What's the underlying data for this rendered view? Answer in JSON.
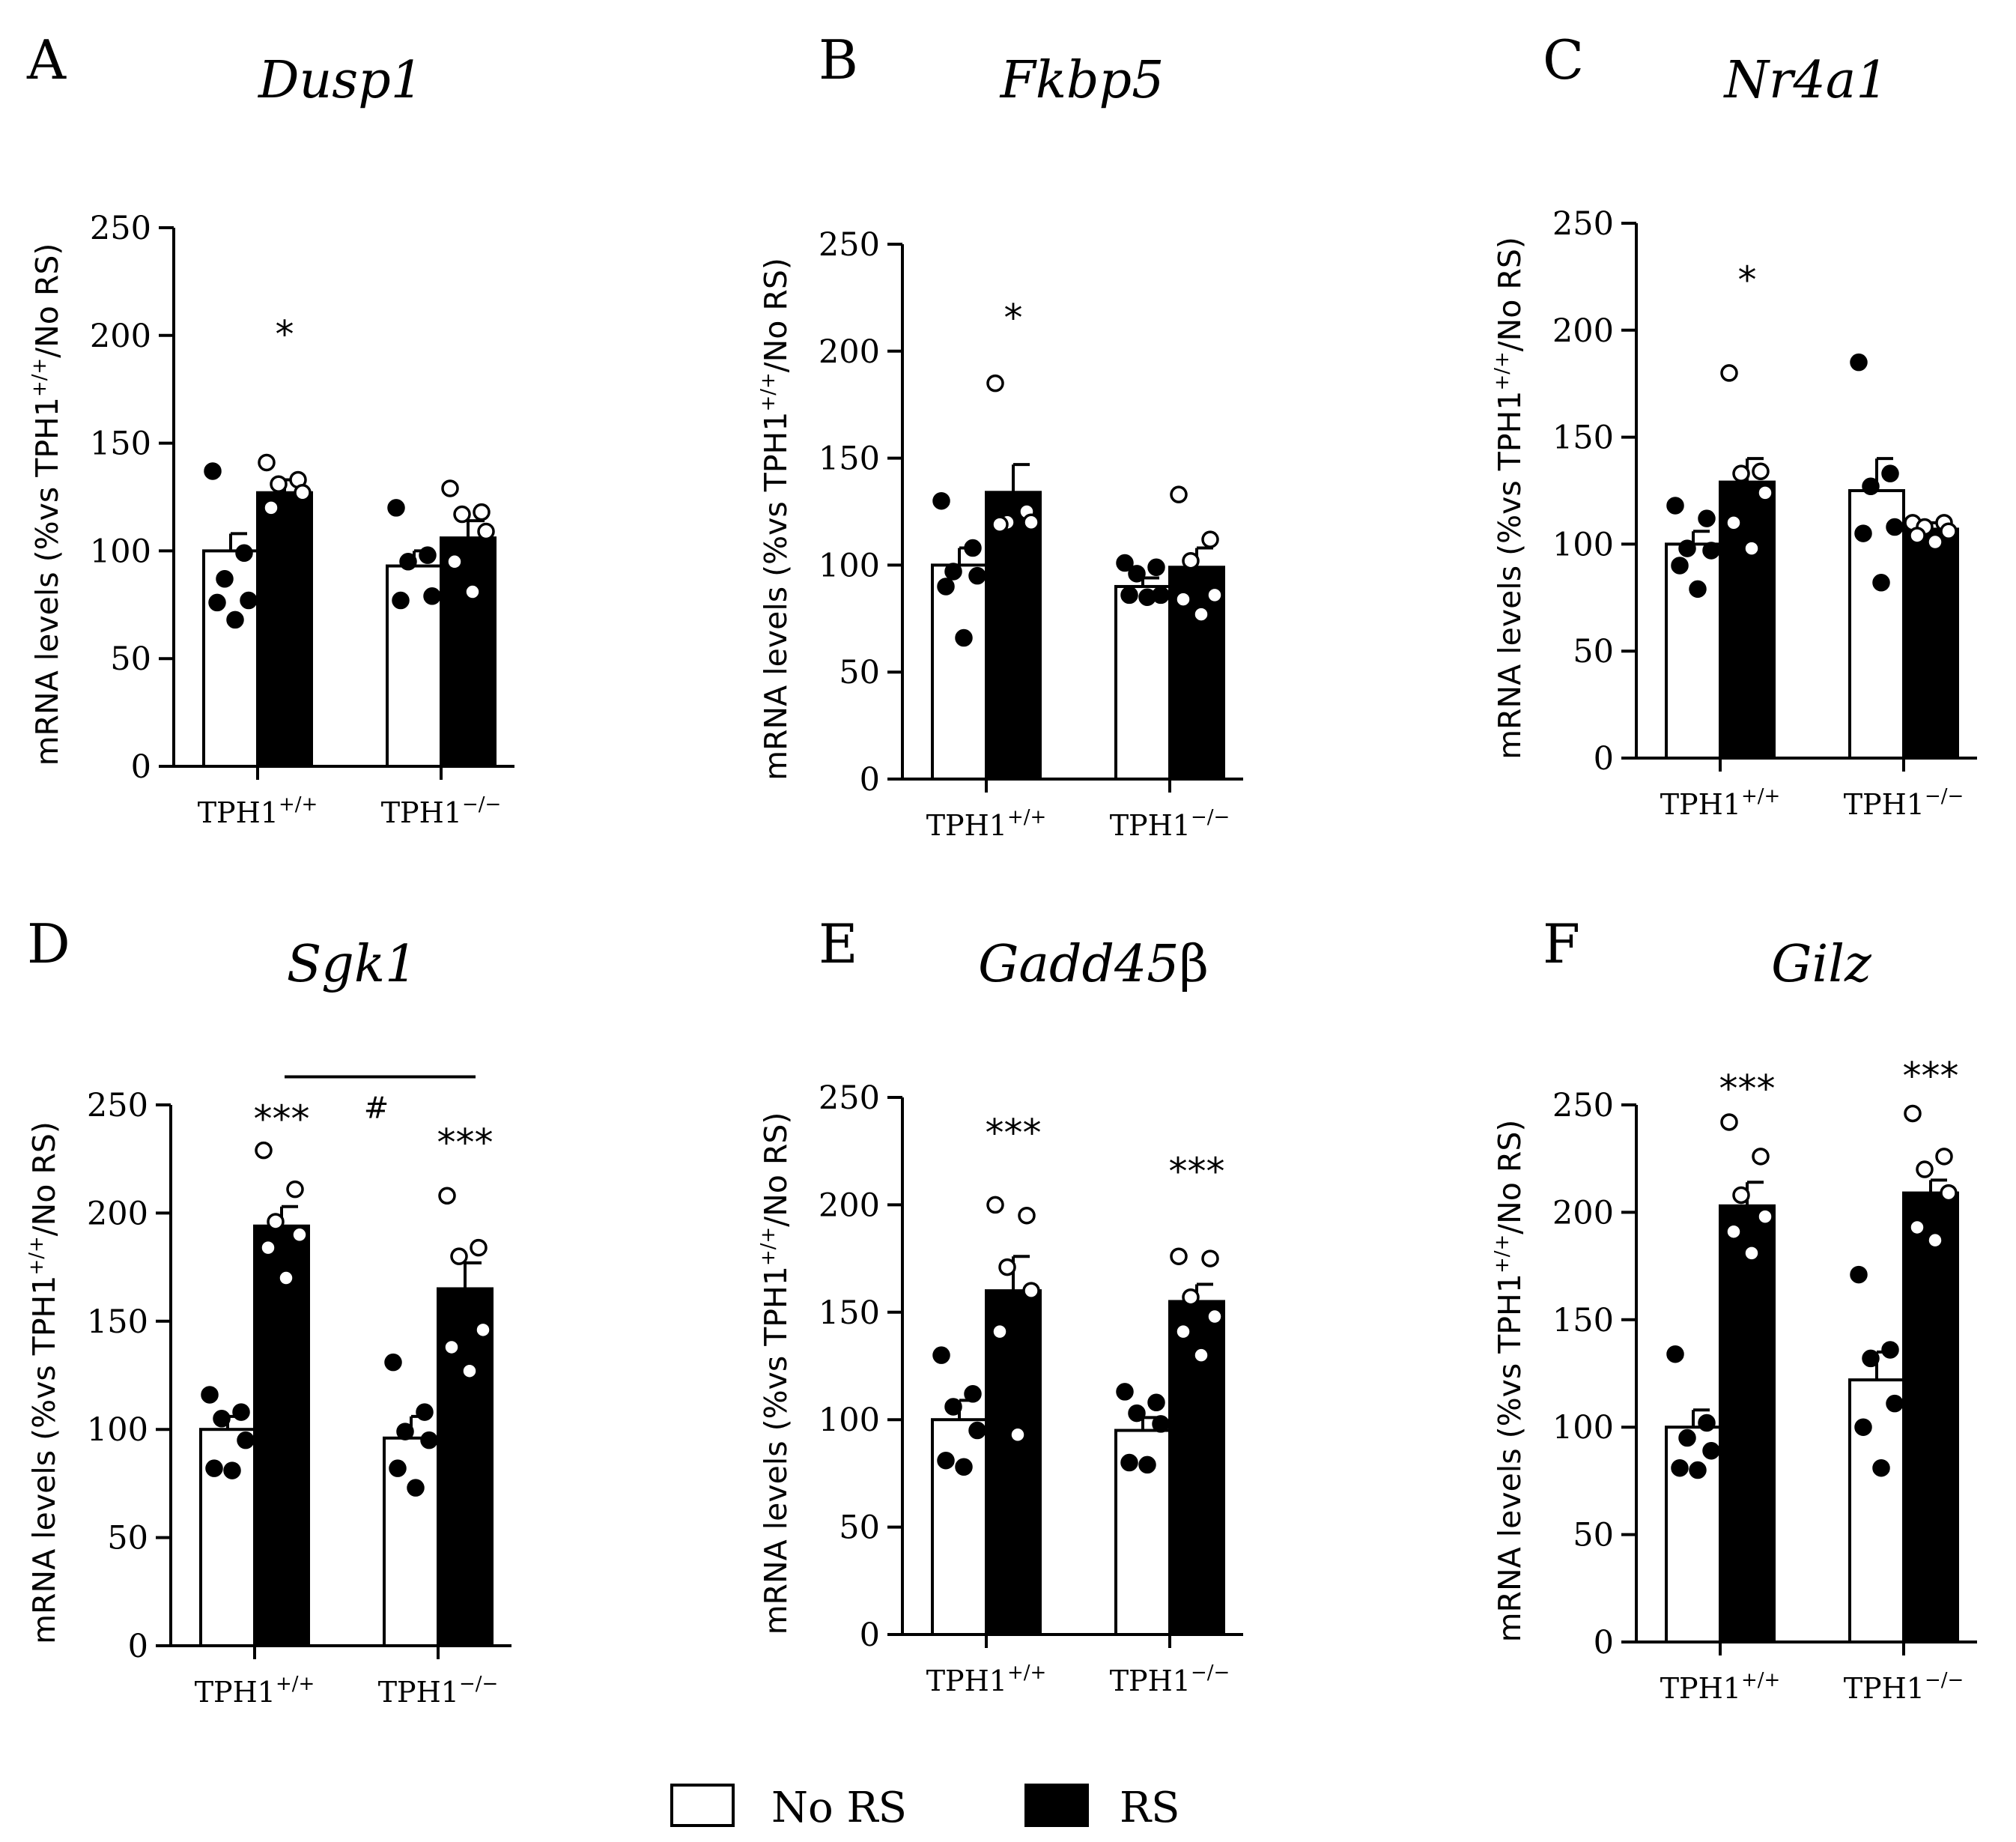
{
  "chart_data": [
    {
      "type": "bar",
      "panel": "A",
      "title": "Dusp1",
      "ylabel": "mRNA levels (%vs TPH1+/+/No RS)",
      "ylim": [
        0,
        250
      ],
      "yticks": [
        0,
        50,
        100,
        150,
        200,
        250
      ],
      "categories": [
        "TPH1+/+",
        "TPH1−/−"
      ],
      "series": [
        {
          "name": "No RS",
          "values": [
            100,
            93
          ],
          "sem": [
            8,
            7
          ],
          "points": [
            [
              137,
              99,
              87,
              77,
              76,
              68
            ],
            [
              120,
              98,
              95,
              79,
              77
            ]
          ]
        },
        {
          "name": "RS",
          "values": [
            127,
            106
          ],
          "sem": [
            6,
            8
          ],
          "points": [
            [
              141,
              133,
              131,
              127,
              120
            ],
            [
              129,
              118,
              117,
              109,
              95,
              81
            ]
          ]
        }
      ],
      "annotations": [
        {
          "text": "*",
          "group": 0,
          "series": 1,
          "y": 205
        }
      ]
    },
    {
      "type": "bar",
      "panel": "B",
      "title": "Fkbp5",
      "ylabel": "mRNA levels (%vs TPH1+/+/No RS)",
      "ylim": [
        0,
        250
      ],
      "yticks": [
        0,
        50,
        100,
        150,
        200,
        250
      ],
      "categories": [
        "TPH1+/+",
        "TPH1−/−"
      ],
      "series": [
        {
          "name": "No RS",
          "values": [
            100,
            90
          ],
          "sem": [
            8,
            4
          ],
          "points": [
            [
              130,
              108,
              97,
              95,
              90,
              66
            ],
            [
              101,
              99,
              96,
              86,
              86,
              85
            ]
          ]
        },
        {
          "name": "RS",
          "values": [
            134,
            99
          ],
          "sem": [
            13,
            9
          ],
          "points": [
            [
              185,
              125,
              120,
              120,
              119
            ],
            [
              133,
              112,
              102,
              86,
              84,
              77
            ]
          ]
        }
      ],
      "annotations": [
        {
          "text": "*",
          "group": 0,
          "series": 1,
          "y": 220
        }
      ]
    },
    {
      "type": "bar",
      "panel": "C",
      "title": "Nr4a1",
      "ylabel": "mRNA levels (%vs TPH1+/+/No RS)",
      "ylim": [
        0,
        250
      ],
      "yticks": [
        0,
        50,
        100,
        150,
        200,
        250
      ],
      "categories": [
        "TPH1+/+",
        "TPH1−/−"
      ],
      "series": [
        {
          "name": "No RS",
          "values": [
            100,
            125
          ],
          "sem": [
            6,
            15
          ],
          "points": [
            [
              118,
              112,
              98,
              97,
              90,
              79
            ],
            [
              185,
              133,
              127,
              108,
              105,
              82
            ]
          ]
        },
        {
          "name": "RS",
          "values": [
            129,
            107
          ],
          "sem": [
            11,
            3
          ],
          "points": [
            [
              180,
              134,
              133,
              124,
              110,
              98
            ],
            [
              110,
              110,
              108,
              106,
              104,
              101
            ]
          ]
        }
      ],
      "annotations": [
        {
          "text": "*",
          "group": 0,
          "series": 1,
          "y": 228
        }
      ]
    },
    {
      "type": "bar",
      "panel": "D",
      "title": "Sgk1",
      "ylabel": "mRNA levels (%vs TPH1+/+/No RS)",
      "ylim": [
        0,
        250
      ],
      "yticks": [
        0,
        50,
        100,
        150,
        200,
        250
      ],
      "categories": [
        "TPH1+/+",
        "TPH1−/−"
      ],
      "series": [
        {
          "name": "No RS",
          "values": [
            100,
            96
          ],
          "sem": [
            6,
            10
          ],
          "points": [
            [
              116,
              108,
              105,
              95,
              82,
              81
            ],
            [
              131,
              108,
              99,
              95,
              82,
              73
            ]
          ]
        },
        {
          "name": "RS",
          "values": [
            194,
            165
          ],
          "sem": [
            9,
            12
          ],
          "points": [
            [
              229,
              211,
              196,
              190,
              184,
              170
            ],
            [
              208,
              184,
              180,
              146,
              138,
              127
            ]
          ]
        }
      ],
      "annotations": [
        {
          "text": "***",
          "group": 0,
          "series": 1,
          "y": 248
        },
        {
          "text": "***",
          "group": 1,
          "series": 1,
          "y": 237
        },
        {
          "text": "#",
          "bracket": [
            0,
            1
          ],
          "y": 263
        }
      ]
    },
    {
      "type": "bar",
      "panel": "E",
      "title": "Gadd45",
      "title_suffix": "β",
      "ylabel": "mRNA levels (%vs TPH1+/+/No RS)",
      "ylim": [
        0,
        250
      ],
      "yticks": [
        0,
        50,
        100,
        150,
        200,
        250
      ],
      "categories": [
        "TPH1+/+",
        "TPH1−/−"
      ],
      "series": [
        {
          "name": "No RS",
          "values": [
            100,
            95
          ],
          "sem": [
            9,
            6
          ],
          "points": [
            [
              130,
              112,
              106,
              95,
              81,
              78
            ],
            [
              113,
              108,
              103,
              98,
              80,
              79
            ]
          ]
        },
        {
          "name": "RS",
          "values": [
            160,
            155
          ],
          "sem": [
            16,
            8
          ],
          "points": [
            [
              200,
              195,
              171,
              160,
              141,
              93
            ],
            [
              176,
              175,
              157,
              148,
              141,
              130
            ]
          ]
        }
      ],
      "annotations": [
        {
          "text": "***",
          "group": 0,
          "series": 1,
          "y": 238
        },
        {
          "text": "***",
          "group": 1,
          "series": 1,
          "y": 220
        }
      ]
    },
    {
      "type": "bar",
      "panel": "F",
      "title": "Gilz",
      "ylabel": "mRNA levels (%vs TPH1+/+/No RS)",
      "ylim": [
        0,
        250
      ],
      "yticks": [
        0,
        50,
        100,
        150,
        200,
        250
      ],
      "categories": [
        "TPH1+/+",
        "TPH1−/−"
      ],
      "series": [
        {
          "name": "No RS",
          "values": [
            100,
            122
          ],
          "sem": [
            8,
            13
          ],
          "points": [
            [
              134,
              102,
              95,
              89,
              81,
              80
            ],
            [
              171,
              136,
              132,
              111,
              100,
              81
            ]
          ]
        },
        {
          "name": "RS",
          "values": [
            203,
            209
          ],
          "sem": [
            11,
            6
          ],
          "points": [
            [
              242,
              226,
              208,
              198,
              191,
              181
            ],
            [
              246,
              226,
              220,
              209,
              193,
              187
            ]
          ]
        }
      ],
      "annotations": [
        {
          "text": "***",
          "group": 0,
          "series": 1,
          "y": 262
        },
        {
          "text": "***",
          "group": 1,
          "series": 1,
          "y": 268
        }
      ]
    }
  ],
  "legend": {
    "items": [
      {
        "label": "No RS",
        "fill": "#ffffff"
      },
      {
        "label": "RS",
        "fill": "#000000"
      }
    ]
  },
  "colors": {
    "ink": "#000000",
    "paper": "#ffffff"
  }
}
